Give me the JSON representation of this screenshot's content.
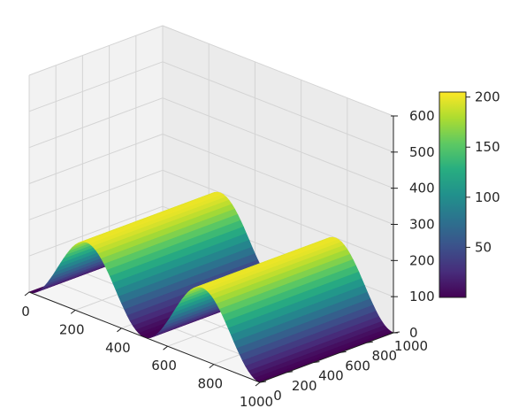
{
  "chart_data": {
    "type": "surface3d",
    "title": "",
    "xlabel": "",
    "ylabel": "",
    "zlabel": "",
    "x_range": [
      0,
      1000
    ],
    "y_range": [
      0,
      1000
    ],
    "z_range": [
      0,
      600
    ],
    "surface": {
      "description_formula": "z = 100 * (1 + sin(2*pi*x/500 - pi/2))",
      "amplitude": 100,
      "offset": 100,
      "period_x": 500,
      "z_min": 0,
      "z_max": 200
    },
    "x_ticks": [
      "0",
      "200",
      "400",
      "600",
      "800",
      "1000"
    ],
    "y_ticks": [
      "0",
      "200",
      "400",
      "600",
      "800",
      "1000"
    ],
    "z_ticks": [
      "0",
      "100",
      "200",
      "300",
      "400",
      "500",
      "600"
    ],
    "colorbar": {
      "colormap": "viridis",
      "range": [
        0,
        205
      ],
      "ticks": [
        "50",
        "100",
        "150",
        "200"
      ]
    },
    "grid": true
  }
}
